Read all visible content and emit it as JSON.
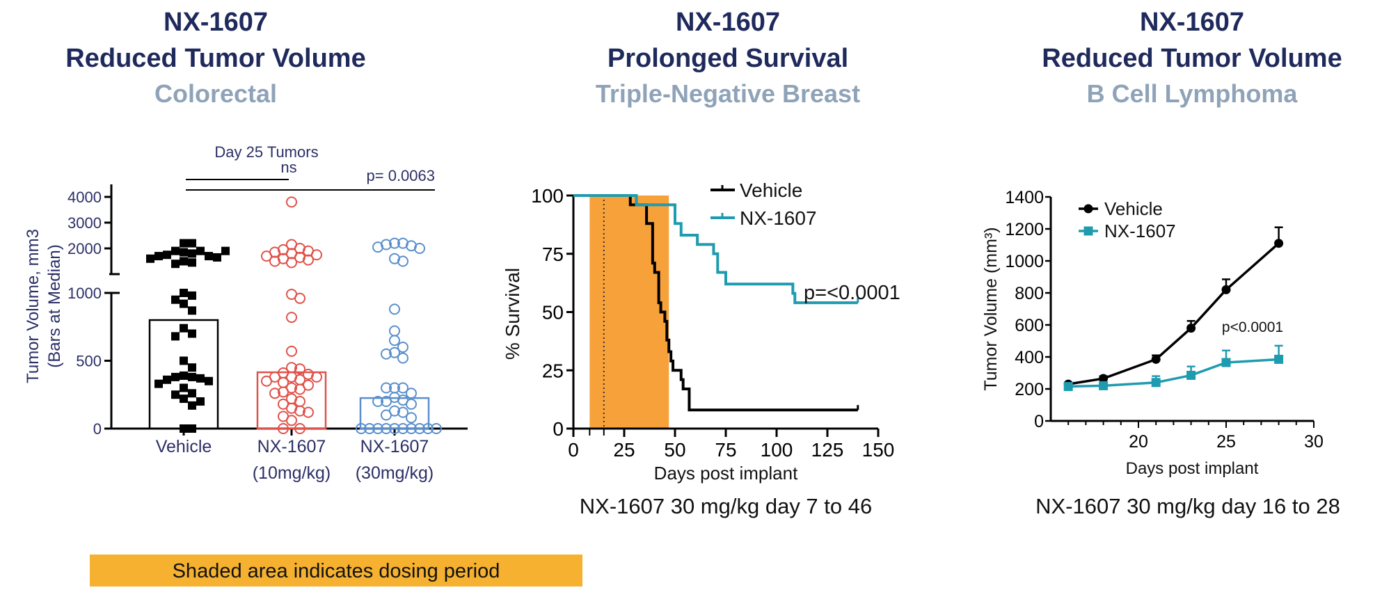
{
  "panels": [
    {
      "title": "NX-1607",
      "subtitle1": "Reduced Tumor Volume",
      "subtitle2": "Colorectal"
    },
    {
      "title": "NX-1607",
      "subtitle1": "Prolonged Survival",
      "subtitle2": "Triple-Negative Breast"
    },
    {
      "title": "NX-1607",
      "subtitle1": "Reduced Tumor Volume",
      "subtitle2": "B Cell Lymphoma"
    }
  ],
  "footer_note": "Shaded area indicates dosing period",
  "colors": {
    "title": "#1f2a5c",
    "subtitle": "#8fa3b8",
    "dosing_shade": "#f7a13a",
    "note_bg": "#f5b12f",
    "teal": "#1f9bb0",
    "red": "#e0524a",
    "blue": "#5b8fcc"
  },
  "chart_data": [
    {
      "type": "scatter",
      "title": "Day 25 Tumors",
      "ylabel": "Tumor Volume, mm3",
      "ylabel2": "(Bars at Median)",
      "categories": [
        [
          "Vehicle",
          ""
        ],
        [
          "NX-1607",
          "(10mg/kg)"
        ],
        [
          "NX-1607",
          "(30mg/kg)"
        ]
      ],
      "y_axis": "broken: 0-1000 and 1000-4000",
      "yticks_lower": [
        0,
        500,
        1000
      ],
      "yticks_upper": [
        2000,
        3000,
        4000
      ],
      "medians": [
        800,
        415,
        225
      ],
      "series": [
        {
          "color": "#000000",
          "marker": "filled-square",
          "values": [
            2200,
            2200,
            1900,
            1900,
            1850,
            1800,
            1750,
            1700,
            1700,
            1650,
            1600,
            1500,
            1450,
            1400,
            1900,
            1000,
            980,
            950,
            920,
            870,
            740,
            700,
            680,
            500,
            450,
            390,
            380,
            380,
            370,
            360,
            350,
            330,
            300,
            260,
            250,
            220,
            200,
            170,
            0,
            0
          ]
        },
        {
          "color": "#e0524a",
          "marker": "open-circle",
          "values": [
            3800,
            2150,
            2000,
            1950,
            1900,
            1850,
            1800,
            1750,
            1700,
            1650,
            1600,
            1550,
            1500,
            1450,
            990,
            960,
            820,
            570,
            450,
            440,
            410,
            400,
            380,
            380,
            380,
            360,
            350,
            340,
            320,
            300,
            290,
            270,
            260,
            220,
            200,
            180,
            150,
            130,
            120,
            90,
            60,
            0,
            0
          ]
        },
        {
          "color": "#5b8fcc",
          "marker": "open-circle",
          "values": [
            2200,
            2200,
            2150,
            2100,
            2050,
            2000,
            1600,
            1500,
            880,
            720,
            650,
            600,
            560,
            550,
            520,
            300,
            300,
            300,
            260,
            230,
            210,
            200,
            200,
            180,
            130,
            120,
            100,
            80,
            0,
            0,
            0,
            0,
            0,
            0,
            0,
            0,
            0,
            0
          ]
        }
      ],
      "annotations": [
        {
          "text": "ns",
          "compare": [
            0,
            1
          ]
        },
        {
          "text": "p= 0.0063",
          "compare": [
            0,
            2
          ]
        }
      ]
    },
    {
      "type": "line",
      "subtype": "kaplan-meier",
      "xlabel": "Days post implant",
      "ylabel": "% Survival",
      "xlim": [
        0,
        150
      ],
      "ylim": [
        0,
        100
      ],
      "xticks": [
        0,
        25,
        50,
        75,
        100,
        125,
        150
      ],
      "yticks": [
        0,
        25,
        50,
        75,
        100
      ],
      "dosing_period": [
        8,
        47
      ],
      "dotted_line_x": 15,
      "legend_position": "top-right",
      "series": [
        {
          "name": "Vehicle",
          "color": "#000000",
          "steps": [
            [
              0,
              100
            ],
            [
              28,
              96
            ],
            [
              36,
              88
            ],
            [
              39,
              71
            ],
            [
              40,
              67
            ],
            [
              42,
              54
            ],
            [
              43,
              50
            ],
            [
              45,
              46
            ],
            [
              46,
              38
            ],
            [
              47,
              33
            ],
            [
              48,
              29
            ],
            [
              49,
              25
            ],
            [
              53,
              21
            ],
            [
              54,
              17
            ],
            [
              57,
              8
            ],
            [
              140,
              8
            ]
          ]
        },
        {
          "name": "NX-1607",
          "color": "#1f9bb0",
          "steps": [
            [
              0,
              100
            ],
            [
              31,
              96
            ],
            [
              50,
              88
            ],
            [
              53,
              83
            ],
            [
              61,
              79
            ],
            [
              69,
              75
            ],
            [
              71,
              67
            ],
            [
              75,
              62
            ],
            [
              108,
              58
            ],
            [
              109,
              54
            ],
            [
              140,
              54
            ]
          ]
        }
      ],
      "annotation": "p=<0.0001",
      "caption": "NX-1607 30 mg/kg day 7 to 46"
    },
    {
      "type": "line",
      "xlabel": "Days post implant",
      "ylabel": "Tumor Volume (mm³)",
      "xlim": [
        15,
        30
      ],
      "ylim": [
        0,
        1400
      ],
      "xticks": [
        20,
        25,
        30
      ],
      "yticks": [
        0,
        200,
        400,
        600,
        800,
        1000,
        1200,
        1400
      ],
      "legend_position": "top-left",
      "series": [
        {
          "name": "Vehicle",
          "color": "#000000",
          "marker": "circle",
          "x": [
            16,
            18,
            21,
            23,
            25,
            28
          ],
          "y": [
            230,
            265,
            385,
            580,
            820,
            1110
          ],
          "err": [
            10,
            15,
            25,
            45,
            65,
            100
          ]
        },
        {
          "name": "NX-1607",
          "color": "#1f9bb0",
          "marker": "square",
          "x": [
            16,
            18,
            21,
            23,
            25,
            28
          ],
          "y": [
            215,
            220,
            240,
            285,
            365,
            385
          ],
          "err": [
            10,
            20,
            40,
            55,
            75,
            85
          ]
        }
      ],
      "annotation": "p<0.0001",
      "caption": "NX-1607 30 mg/kg day 16 to 28"
    }
  ]
}
